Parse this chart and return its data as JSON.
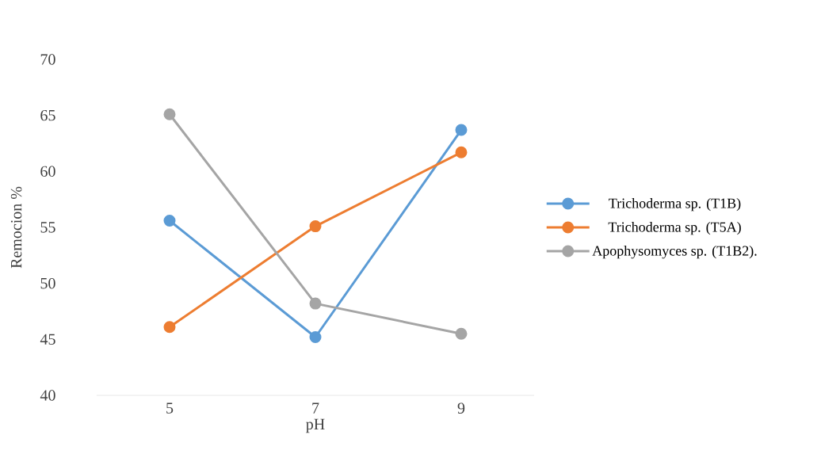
{
  "chart_data": {
    "type": "line",
    "xlabel": "pH",
    "ylabel": "Remocion %",
    "categories": [
      "5",
      "7",
      "9"
    ],
    "ylim": [
      40,
      70
    ],
    "yticks": [
      40,
      45,
      50,
      55,
      60,
      65,
      70
    ],
    "grid": false,
    "legend": "right",
    "marker": "circle",
    "line_style": "solid",
    "series": [
      {
        "name": "Trichoderma sp. (T1B)",
        "color": "#5b9bd5",
        "values": [
          55.6,
          45.2,
          63.7
        ]
      },
      {
        "name": "Trichoderma sp. (T5A)",
        "color": "#ed7d31",
        "values": [
          46.1,
          55.1,
          61.7
        ]
      },
      {
        "name": "Apophysomyces sp. (T1B2).",
        "color": "#a5a5a5",
        "values": [
          65.1,
          48.2,
          45.5
        ]
      }
    ]
  }
}
